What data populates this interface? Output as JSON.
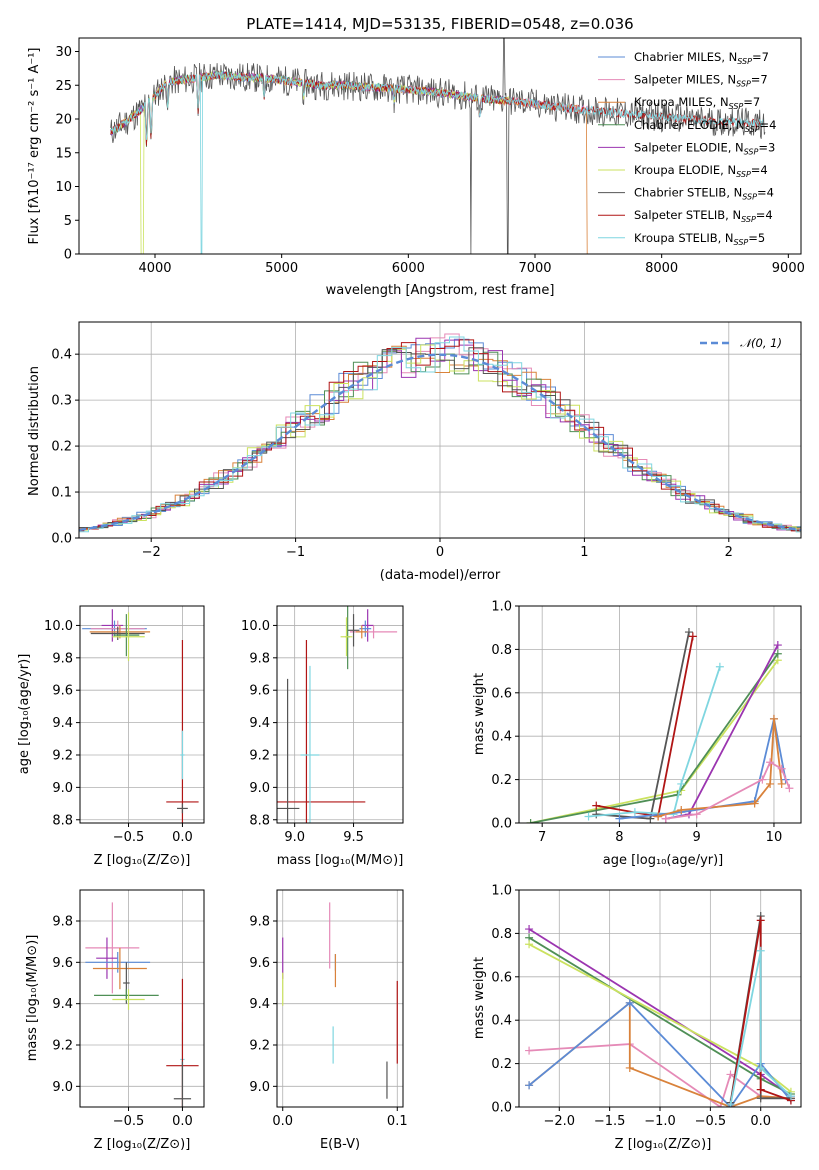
{
  "colors": {
    "chabrier_miles": "#5b8bd6",
    "salpeter_miles": "#e58ab7",
    "kroupa_miles": "#d9823b",
    "chabrier_elodie": "#4f8f56",
    "salpeter_elodie": "#9b35b0",
    "kroupa_elodie": "#cbe25f",
    "chabrier_stelib": "#555555",
    "salpeter_stelib": "#b01515",
    "kroupa_stelib": "#7fd6e0",
    "normal": "#5b8bd6"
  },
  "chart_data": [
    {
      "type": "line",
      "title": "PLATE=1414, MJD=53135, FIBERID=0548, z=0.036",
      "xlabel": "wavelength [Angstrom, rest frame]",
      "ylabel": "Flux [fλ10⁻¹⁷ erg cm⁻² s⁻¹ A⁻¹]",
      "xlim": [
        3400,
        9100
      ],
      "ylim": [
        0,
        32
      ],
      "xticks": [
        "4000",
        "5000",
        "6000",
        "7000",
        "8000",
        "9000"
      ],
      "yticks": [
        "0",
        "5",
        "10",
        "15",
        "20",
        "25",
        "30"
      ],
      "legend_position": "top-right",
      "legend": [
        "Chabrier MILES, N_SSP=7",
        "Salpeter MILES, N_SSP=7",
        "Kroupa MILES, N_SSP=7",
        "Chabrier ELODIE, N_SSP=4",
        "Salpeter ELODIE, N_SSP=3",
        "Kroupa ELODIE, N_SSP=4",
        "Chabrier STELIB, N_SSP=4",
        "Salpeter STELIB, N_SSP=4",
        "Kroupa STELIB, N_SSP=5"
      ],
      "spectrum_continuum": {
        "x": [
          3650,
          3800,
          3900,
          4000,
          4100,
          4300,
          4500,
          4700,
          4900,
          5100,
          5300,
          5500,
          5700,
          5900,
          6100,
          6300,
          6500,
          6700,
          6900,
          7100,
          7300,
          7500,
          7700,
          7900,
          8100,
          8300,
          8500,
          8700,
          8800
        ],
        "y": [
          18,
          20,
          21.5,
          23.5,
          25.5,
          26,
          26.5,
          26.2,
          26,
          25.5,
          25,
          25,
          24.7,
          24.5,
          24.2,
          23.8,
          23.2,
          22.8,
          22.5,
          22,
          21.5,
          21.2,
          20.8,
          20.5,
          20.2,
          19.8,
          19.6,
          19.4,
          19.3
        ]
      }
    },
    {
      "type": "line",
      "xlabel": "(data-model)/error",
      "ylabel": "Normed distribution",
      "xlim": [
        -2.5,
        2.5
      ],
      "ylim": [
        0,
        0.47
      ],
      "xticks": [
        "−2",
        "−1",
        "0",
        "1",
        "2"
      ],
      "yticks": [
        "0.0",
        "0.1",
        "0.2",
        "0.3",
        "0.4"
      ],
      "legend": [
        "𝒩(0, 1)"
      ],
      "legend_position": "top-right"
    },
    {
      "type": "scatter",
      "xlabel": "Z [log₁₀(Z/Z⊙)]",
      "ylabel": "age  [log₁₀(age/yr)]",
      "xlim": [
        -0.95,
        0.2
      ],
      "ylim": [
        8.78,
        10.12
      ],
      "xticks": [
        "−0.5",
        "0.0"
      ],
      "yticks": [
        "8.8",
        "9.0",
        "9.2",
        "9.4",
        "9.6",
        "9.8",
        "10.0"
      ],
      "points": [
        {
          "model": "salpeter_elodie",
          "x": -0.65,
          "y": 10.0,
          "xerr": 0.1,
          "yerr": 0.1
        },
        {
          "model": "chabrier_miles",
          "x": -0.63,
          "y": 9.98,
          "xerr": 0.3,
          "yerr": 0.05
        },
        {
          "model": "salpeter_miles",
          "x": -0.6,
          "y": 9.98,
          "xerr": 0.25,
          "yerr": 0.05
        },
        {
          "model": "kroupa_miles",
          "x": -0.58,
          "y": 9.96,
          "xerr": 0.28,
          "yerr": 0.04
        },
        {
          "model": "chabrier_stelib",
          "x": -0.6,
          "y": 9.95,
          "xerr": 0.25,
          "yerr": 0.04
        },
        {
          "model": "chabrier_elodie",
          "x": -0.52,
          "y": 9.94,
          "xerr": 0.12,
          "yerr": 0.13
        },
        {
          "model": "kroupa_elodie",
          "x": -0.5,
          "y": 9.93,
          "xerr": 0.15,
          "yerr": 0.15
        },
        {
          "model": "salpeter_stelib",
          "x": 0.0,
          "y": 8.91,
          "xerr": 0.15,
          "yerr": 1.0
        },
        {
          "model": "kroupa_stelib",
          "x": 0.0,
          "y": 9.2,
          "xerr": 0.02,
          "yerr": 0.15
        },
        {
          "model": "chabrier_stelib",
          "x": 0.0,
          "y": 8.87,
          "xerr": 0.05,
          "yerr": 0.03
        }
      ]
    },
    {
      "type": "scatter",
      "xlabel": "mass [log₁₀(M/M⊙)]",
      "ylabel": "",
      "xlim": [
        8.85,
        9.92
      ],
      "ylim": [
        8.78,
        10.12
      ],
      "xticks": [
        "9.0",
        "9.5"
      ],
      "yticks": [
        "8.8",
        "9.0",
        "9.2",
        "9.4",
        "9.6",
        "9.8",
        "10.0"
      ],
      "points": [
        {
          "model": "salpeter_elodie",
          "x": 9.62,
          "y": 10.0,
          "xerr": 0.05,
          "yerr": 0.1
        },
        {
          "model": "chabrier_miles",
          "x": 9.6,
          "y": 9.98,
          "xerr": 0.05,
          "yerr": 0.05
        },
        {
          "model": "salpeter_miles",
          "x": 9.67,
          "y": 9.96,
          "xerr": 0.2,
          "yerr": 0.04
        },
        {
          "model": "kroupa_miles",
          "x": 9.57,
          "y": 9.96,
          "xerr": 0.05,
          "yerr": 0.04
        },
        {
          "model": "chabrier_stelib",
          "x": 9.5,
          "y": 9.97,
          "xerr": 0.05,
          "yerr": 0.1
        },
        {
          "model": "chabrier_elodie",
          "x": 9.45,
          "y": 9.93,
          "xerr": 0.02,
          "yerr": 0.2
        },
        {
          "model": "kroupa_elodie",
          "x": 9.44,
          "y": 9.93,
          "xerr": 0.05,
          "yerr": 0.12
        },
        {
          "model": "salpeter_stelib",
          "x": 9.1,
          "y": 8.91,
          "xerr": 0.5,
          "yerr": 1.0
        },
        {
          "model": "kroupa_stelib",
          "x": 9.13,
          "y": 9.2,
          "xerr": 0.08,
          "yerr": 0.55
        },
        {
          "model": "chabrier_stelib",
          "x": 8.94,
          "y": 8.87,
          "xerr": 0.1,
          "yerr": 0.8
        }
      ]
    },
    {
      "type": "line",
      "xlabel": "age  [log₁₀(age/yr)]",
      "ylabel": "mass weight",
      "xlim": [
        6.7,
        10.35
      ],
      "ylim": [
        0,
        1.0
      ],
      "xticks": [
        "7",
        "8",
        "9",
        "10"
      ],
      "yticks": [
        "0.0",
        "0.2",
        "0.4",
        "0.6",
        "0.8",
        "1.0"
      ],
      "series": [
        {
          "model": "kroupa_elodie",
          "x": [
            6.85,
            8.8,
            10.05
          ],
          "y": [
            0.0,
            0.15,
            0.75
          ]
        },
        {
          "model": "chabrier_elodie",
          "x": [
            6.85,
            8.75,
            10.05
          ],
          "y": [
            0.0,
            0.13,
            0.78
          ]
        },
        {
          "model": "salpeter_elodie",
          "x": [
            8.6,
            8.9,
            10.05
          ],
          "y": [
            0.02,
            0.04,
            0.82
          ]
        },
        {
          "model": "chabrier_stelib",
          "x": [
            7.7,
            8.4,
            8.9
          ],
          "y": [
            0.04,
            0.02,
            0.88
          ]
        },
        {
          "model": "salpeter_stelib",
          "x": [
            7.7,
            8.5,
            8.95
          ],
          "y": [
            0.08,
            0.03,
            0.86
          ]
        },
        {
          "model": "kroupa_stelib",
          "x": [
            7.6,
            8.2,
            8.7,
            8.8,
            9.3
          ],
          "y": [
            0.03,
            0.05,
            0.04,
            0.18,
            0.72
          ]
        },
        {
          "model": "chabrier_miles",
          "x": [
            8.0,
            8.8,
            9.75,
            10.0,
            10.15
          ],
          "y": [
            0.02,
            0.05,
            0.1,
            0.48,
            0.2
          ]
        },
        {
          "model": "kroupa_miles",
          "x": [
            8.5,
            8.8,
            9.75,
            9.95,
            10.0,
            10.1
          ],
          "y": [
            0.03,
            0.06,
            0.09,
            0.18,
            0.48,
            0.18
          ]
        },
        {
          "model": "salpeter_miles",
          "x": [
            8.6,
            9.0,
            9.85,
            9.95,
            10.1,
            10.2
          ],
          "y": [
            0.02,
            0.04,
            0.2,
            0.28,
            0.25,
            0.16
          ]
        }
      ]
    },
    {
      "type": "scatter",
      "xlabel": "Z [log₁₀(Z/Z⊙)]",
      "ylabel": "mass [log₁₀(M/M⊙)]",
      "xlim": [
        -0.95,
        0.2
      ],
      "ylim": [
        8.9,
        9.95
      ],
      "xticks": [
        "−0.5",
        "0.0"
      ],
      "yticks": [
        "9.0",
        "9.2",
        "9.4",
        "9.6",
        "9.8"
      ],
      "points": [
        {
          "model": "salpeter_miles",
          "x": -0.65,
          "y": 9.67,
          "xerr": 0.25,
          "yerr": 0.22
        },
        {
          "model": "salpeter_elodie",
          "x": -0.7,
          "y": 9.62,
          "xerr": 0.1,
          "yerr": 0.1
        },
        {
          "model": "chabrier_miles",
          "x": -0.6,
          "y": 9.6,
          "xerr": 0.3,
          "yerr": 0.05
        },
        {
          "model": "kroupa_miles",
          "x": -0.58,
          "y": 9.57,
          "xerr": 0.25,
          "yerr": 0.1
        },
        {
          "model": "chabrier_stelib",
          "x": -0.52,
          "y": 9.5,
          "xerr": 0.03,
          "yerr": 0.1
        },
        {
          "model": "chabrier_elodie",
          "x": -0.52,
          "y": 9.44,
          "xerr": 0.3,
          "yerr": 0.03
        },
        {
          "model": "kroupa_elodie",
          "x": -0.5,
          "y": 9.42,
          "xerr": 0.15,
          "yerr": 0.05
        },
        {
          "model": "kroupa_stelib",
          "x": 0.0,
          "y": 9.13,
          "xerr": 0.02,
          "yerr": 0.18
        },
        {
          "model": "salpeter_stelib",
          "x": 0.0,
          "y": 9.1,
          "xerr": 0.15,
          "yerr": 0.42
        },
        {
          "model": "chabrier_stelib",
          "x": 0.0,
          "y": 8.94,
          "xerr": 0.08,
          "yerr": 0.18
        }
      ]
    },
    {
      "type": "scatter",
      "xlabel": "E(B-V)",
      "ylabel": "",
      "xlim": [
        -0.005,
        0.105
      ],
      "ylim": [
        8.9,
        9.95
      ],
      "xticks": [
        "0.0",
        "0.1"
      ],
      "yticks": [
        "9.0",
        "9.2",
        "9.4",
        "9.6",
        "9.8"
      ],
      "points": [
        {
          "model": "salpeter_elodie",
          "x": 0.0,
          "y": 9.62,
          "xerr": 0.0,
          "yerr": 0.1
        },
        {
          "model": "kroupa_elodie",
          "x": 0.0,
          "y": 9.47,
          "xerr": 0.0,
          "yerr": 0.08
        },
        {
          "model": "salpeter_miles",
          "x": 0.041,
          "y": 9.73,
          "xerr": 0.0,
          "yerr": 0.16
        },
        {
          "model": "chabrier_miles",
          "x": 0.046,
          "y": 9.6,
          "xerr": 0.0,
          "yerr": 0.04
        },
        {
          "model": "kroupa_miles",
          "x": 0.046,
          "y": 9.56,
          "xerr": 0.0,
          "yerr": 0.08
        },
        {
          "model": "kroupa_stelib",
          "x": 0.044,
          "y": 9.2,
          "xerr": 0.0,
          "yerr": 0.09
        },
        {
          "model": "chabrier_stelib",
          "x": 0.091,
          "y": 9.03,
          "xerr": 0.0,
          "yerr": 0.09
        },
        {
          "model": "salpeter_stelib",
          "x": 0.1,
          "y": 9.31,
          "xerr": 0.0,
          "yerr": 0.2
        }
      ]
    },
    {
      "type": "line",
      "xlabel": "Z [log₁₀(Z/Z⊙)]",
      "ylabel": "mass weight",
      "xlim": [
        -2.4,
        0.4
      ],
      "ylim": [
        0,
        1.0
      ],
      "xticks": [
        "−2.0",
        "−1.5",
        "−1.0",
        "−0.5",
        "0.0"
      ],
      "yticks": [
        "0.0",
        "0.2",
        "0.4",
        "0.6",
        "0.8",
        "1.0"
      ],
      "series": [
        {
          "model": "salpeter_elodie",
          "x": [
            -2.3,
            0.0,
            0.3
          ],
          "y": [
            0.82,
            0.15,
            0.05
          ]
        },
        {
          "model": "chabrier_elodie",
          "x": [
            -2.3,
            0.0,
            0.3
          ],
          "y": [
            0.78,
            0.13,
            0.06
          ]
        },
        {
          "model": "kroupa_elodie",
          "x": [
            -2.3,
            0.0,
            0.3
          ],
          "y": [
            0.75,
            0.18,
            0.07
          ]
        },
        {
          "model": "salpeter_miles",
          "x": [
            -2.3,
            -1.3,
            -0.4,
            -0.3,
            0.0,
            0.3
          ],
          "y": [
            0.26,
            0.29,
            0.0,
            0.15,
            0.05,
            0.04
          ]
        },
        {
          "model": "kroupa_miles",
          "x": [
            -2.3,
            -1.3,
            -1.3,
            -0.3,
            0.0,
            0.3
          ],
          "y": [
            0.1,
            0.48,
            0.18,
            0.0,
            0.05,
            0.04
          ]
        },
        {
          "model": "chabrier_miles",
          "x": [
            -2.3,
            -1.3,
            -0.3,
            0.0,
            0.3
          ],
          "y": [
            0.1,
            0.48,
            0.0,
            0.2,
            0.03
          ]
        },
        {
          "model": "chabrier_stelib",
          "x": [
            -0.3,
            0.0,
            0.0,
            0.3
          ],
          "y": [
            0.02,
            0.88,
            0.04,
            0.04
          ]
        },
        {
          "model": "salpeter_stelib",
          "x": [
            -0.3,
            0.0,
            0.0,
            0.3
          ],
          "y": [
            0.01,
            0.86,
            0.08,
            0.03
          ]
        },
        {
          "model": "kroupa_stelib",
          "x": [
            -0.3,
            0.0,
            0.0,
            0.3
          ],
          "y": [
            0.01,
            0.72,
            0.18,
            0.05
          ]
        }
      ]
    }
  ]
}
